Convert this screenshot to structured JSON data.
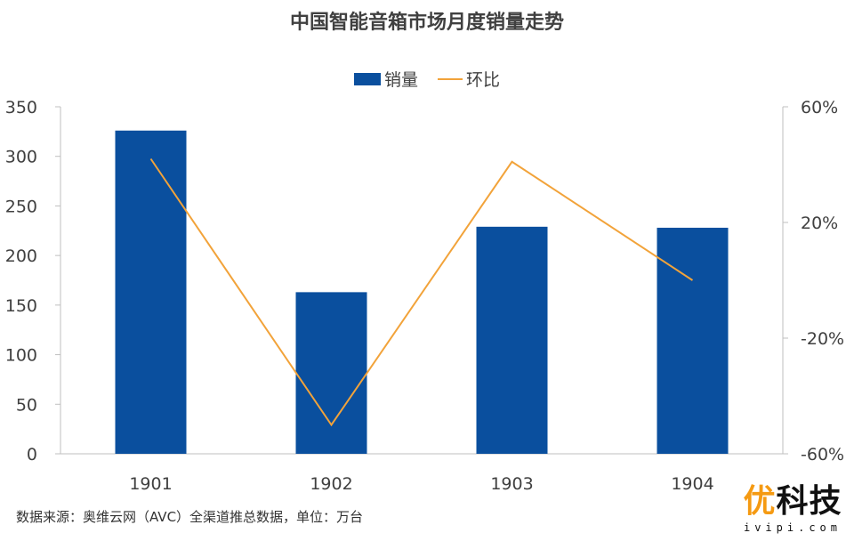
{
  "chart_data": {
    "type": "bar",
    "title": "中国智能音箱市场月度销量走势",
    "categories": [
      "1901",
      "1902",
      "1903",
      "1904"
    ],
    "series": [
      {
        "name": "销量",
        "type": "bar",
        "axis": "left",
        "values": [
          326,
          163,
          229,
          228
        ],
        "color": "#0a4f9e"
      },
      {
        "name": "环比",
        "type": "line",
        "axis": "right",
        "values": [
          0.42,
          -0.5,
          0.41,
          0.0
        ],
        "color": "#f2a33a"
      }
    ],
    "y_left": {
      "min": 0,
      "max": 350,
      "ticks": [
        0,
        50,
        100,
        150,
        200,
        250,
        300,
        350
      ]
    },
    "y_right": {
      "min": -0.6,
      "max": 0.6,
      "ticks": [
        -0.6,
        -0.2,
        0.2,
        0.6
      ],
      "tick_labels": [
        "-60%",
        "-20%",
        "20%",
        "60%"
      ]
    },
    "legend_position": "top-center",
    "grid": false
  },
  "source_note": "数据来源：奥维云网（AVC）全渠道推总数据，单位：万台",
  "logo": {
    "main_a": "优",
    "main_b": "科技",
    "sub": "ivipi.com"
  }
}
